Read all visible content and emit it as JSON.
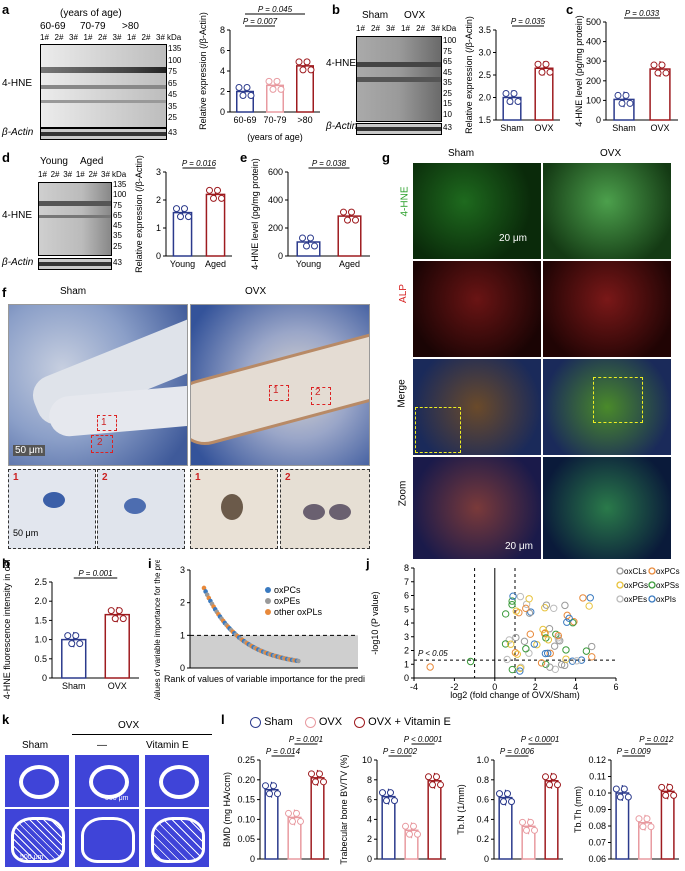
{
  "figure": {
    "panel_labels": [
      "a",
      "b",
      "c",
      "d",
      "e",
      "f",
      "g",
      "h",
      "i",
      "j",
      "k",
      "l"
    ],
    "colors": {
      "blue": "#2b3a8c",
      "red": "#9e1b1f",
      "pink": "#e89aa0",
      "orange": "#e8893a",
      "gray": "#9a9a9a",
      "fluor_green": "#2aa02a",
      "fluor_red": "#d62020"
    }
  },
  "a": {
    "age_header": "(years of age)",
    "groups": [
      "60-69",
      "70-79",
      ">80"
    ],
    "lane_labels": [
      "1#",
      "2#",
      "3#",
      "1#",
      "2#",
      "3#",
      "1#",
      "2#",
      "3#"
    ],
    "kda_label": "kDa",
    "markers": [
      "135",
      "100",
      "75",
      "65",
      "45",
      "35",
      "25"
    ],
    "row1": "4-HNE",
    "row2": "β-Actin",
    "actin_kda": "43",
    "chart_data": {
      "type": "bar",
      "categories": [
        "60-69",
        "70-79",
        ">80"
      ],
      "values": [
        2.0,
        2.6,
        4.5
      ],
      "ylabel": "Relative expression (/β-Actin)",
      "xlabel": "(years of age)",
      "ylim": [
        0,
        8
      ],
      "yticks": [
        "0",
        "2",
        "4",
        "6",
        "8"
      ],
      "pvalues": [
        "P = 0.007",
        "P = 0.045"
      ]
    }
  },
  "b": {
    "groups": [
      "Sham",
      "OVX"
    ],
    "lane_labels": [
      "1#",
      "2#",
      "3#",
      "1#",
      "2#",
      "3#"
    ],
    "kda_label": "kDa",
    "markers": [
      "100",
      "75",
      "65",
      "45",
      "35",
      "25",
      "15",
      "10"
    ],
    "row1": "4-HNE",
    "row2": "β-Actin",
    "actin_kda": "43",
    "chart_data": {
      "type": "bar",
      "categories": [
        "Sham",
        "OVX"
      ],
      "values": [
        2.0,
        2.65
      ],
      "ylabel": "Relative expression (/β-Actin)",
      "ylim": [
        1.5,
        3.5
      ],
      "yticks": [
        "1.5",
        "2.0",
        "2.5",
        "3.0",
        "3.5"
      ],
      "pvalues": [
        "P = 0.035"
      ]
    }
  },
  "c": {
    "chart_data": {
      "type": "bar",
      "categories": [
        "Sham",
        "OVX"
      ],
      "values": [
        105,
        260
      ],
      "ylabel": "4-HNE level (pg/mg protein)",
      "ylim": [
        0,
        500
      ],
      "yticks": [
        "0",
        "100",
        "200",
        "300",
        "400",
        "500"
      ],
      "pvalues": [
        "P = 0.033"
      ]
    }
  },
  "d": {
    "groups": [
      "Young",
      "Aged"
    ],
    "lane_labels": [
      "1#",
      "2#",
      "3#",
      "1#",
      "2#",
      "3#"
    ],
    "kda_label": "kDa",
    "markers": [
      "135",
      "100",
      "75",
      "65",
      "45",
      "35",
      "25"
    ],
    "row1": "4-HNE",
    "row2": "β-Actin",
    "actin_kda": "43",
    "chart_data": {
      "type": "bar",
      "categories": [
        "Young",
        "Aged"
      ],
      "values": [
        1.55,
        2.2
      ],
      "ylabel": "Relative expression (/β-Actin)",
      "ylim": [
        0,
        3
      ],
      "yticks": [
        "0",
        "1",
        "2",
        "3"
      ],
      "pvalues": [
        "P = 0.016"
      ]
    }
  },
  "e": {
    "chart_data": {
      "type": "bar",
      "categories": [
        "Young",
        "Aged"
      ],
      "values": [
        100,
        285
      ],
      "ylabel": "4-HNE level (pg/mg protein)",
      "ylim": [
        0,
        600
      ],
      "yticks": [
        "0",
        "200",
        "400",
        "600"
      ],
      "pvalues": [
        "P = 0.038"
      ]
    }
  },
  "f": {
    "col_labels": [
      "Sham",
      "OVX"
    ],
    "scale1": "50 μm",
    "scale2": "50 μm",
    "inset_labels": [
      "1",
      "2",
      "1",
      "2"
    ]
  },
  "g": {
    "col_labels": [
      "Sham",
      "OVX"
    ],
    "row_labels": [
      "4-HNE",
      "ALP",
      "Merge",
      "Zoom"
    ],
    "scale1": "20 μm",
    "scale2": "20 μm"
  },
  "h": {
    "chart_data": {
      "type": "bar",
      "categories": [
        "Sham",
        "OVX"
      ],
      "values": [
        1.0,
        1.65
      ],
      "ylabel": "Relative 4-HNE fluorescence intensity in osteoblasts",
      "ylim": [
        0,
        2.5
      ],
      "yticks": [
        "0",
        "0.5",
        "1.0",
        "1.5",
        "2.0",
        "2.5"
      ],
      "pvalues": [
        "P = 0.001"
      ]
    }
  },
  "i": {
    "chart_data": {
      "type": "scatter",
      "title": "",
      "ylabel": "Values of variable importance for the prediction",
      "xlabel": "Rank of values of variable importance for the prediction",
      "ylim": [
        0,
        3
      ],
      "yticks": [
        "0",
        "1",
        "2",
        "3"
      ],
      "threshold": 1,
      "legend": [
        "oxPCs",
        "oxPEs",
        "other oxPLs"
      ]
    }
  },
  "j": {
    "chart_data": {
      "type": "scatter",
      "xlabel": "log2 (fold change of OVX/Sham)",
      "ylabel": "-log10 (P value)",
      "xlim": [
        -4,
        6
      ],
      "ylim": [
        0,
        8
      ],
      "xticks": [
        "-4",
        "-2",
        "0",
        "2",
        "4",
        "6"
      ],
      "yticks": [
        "0",
        "1",
        "2",
        "3",
        "4",
        "5",
        "6",
        "7",
        "8"
      ],
      "annotation": "P < 0.05",
      "legend": [
        "oxCLs",
        "oxPCs",
        "oxPGs",
        "oxPSs",
        "oxPEs",
        "oxPIs"
      ]
    }
  },
  "k": {
    "col_labels": [
      "Sham",
      "—",
      "Vitamin E"
    ],
    "group_label": "OVX",
    "scale1": "500 μm",
    "scale2": "500 μm"
  },
  "l": {
    "legend": [
      "Sham",
      "OVX",
      "OVX + Vitamin E"
    ],
    "charts": [
      {
        "ylabel": "BMD (mg HA/ccm)",
        "values": [
          0.175,
          0.105,
          0.205
        ],
        "ylim": [
          0,
          0.25
        ],
        "yticks": [
          "0",
          "0.05",
          "0.10",
          "0.15",
          "0.20",
          "0.25"
        ],
        "pvalues": [
          "P = 0.014",
          "P = 0.001"
        ]
      },
      {
        "ylabel": "Trabecular bone BV/TV (%)",
        "values": [
          6.3,
          2.9,
          7.9
        ],
        "ylim": [
          0,
          10
        ],
        "yticks": [
          "0",
          "2",
          "4",
          "6",
          "8",
          "10"
        ],
        "pvalues": [
          "P = 0.002",
          "P < 0.0001"
        ]
      },
      {
        "ylabel": "Tb.N (1/mm)",
        "values": [
          0.62,
          0.33,
          0.79
        ],
        "ylim": [
          0,
          1.0
        ],
        "yticks": [
          "0",
          "0.2",
          "0.4",
          "0.6",
          "0.8",
          "1.0"
        ],
        "pvalues": [
          "P = 0.006",
          "P < 0.0001"
        ]
      },
      {
        "ylabel": "Tb.Th (mm)",
        "values": [
          0.1,
          0.082,
          0.101
        ],
        "ylim": [
          0.06,
          0.12
        ],
        "yticks": [
          "0.06",
          "0.07",
          "0.08",
          "0.09",
          "0.10",
          "0.11",
          "0.12"
        ],
        "pvalues": [
          "P = 0.009",
          "P = 0.012"
        ]
      }
    ]
  }
}
